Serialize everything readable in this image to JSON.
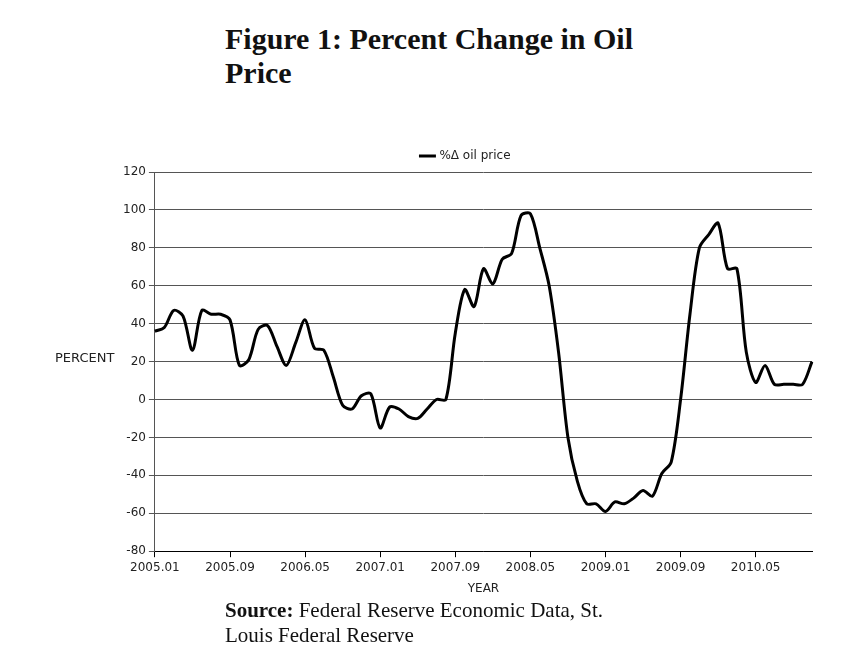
{
  "chart_data": {
    "type": "line",
    "title": "Figure 1: Percent Change in Oil Price",
    "source": "Source: Federal Reserve Economic Data, St. Louis Federal Reserve",
    "x_label": "YEAR",
    "y_label": "PERCENT",
    "categories": [
      "2005.01",
      null,
      null,
      null,
      null,
      null,
      null,
      null,
      "2005.09",
      null,
      null,
      null,
      null,
      null,
      null,
      null,
      "2006.05",
      null,
      null,
      null,
      null,
      null,
      null,
      null,
      "2007.01",
      null,
      null,
      null,
      null,
      null,
      null,
      null,
      "2007.09",
      null,
      null,
      null,
      null,
      null,
      null,
      null,
      "2008.05",
      null,
      null,
      null,
      null,
      null,
      null,
      null,
      "2009.01",
      null,
      null,
      null,
      null,
      null,
      null,
      null,
      "2009.09",
      null,
      null,
      null,
      null,
      null,
      null,
      null,
      "2010.05",
      null,
      null,
      null,
      null,
      null,
      null
    ],
    "series": [
      {
        "name": "%Δ oil price",
        "color": "#000000",
        "values": [
          36,
          38,
          47,
          44,
          26,
          47,
          45,
          45,
          42,
          18,
          21,
          37,
          39,
          28,
          18,
          30,
          42,
          27,
          26,
          12,
          -3,
          -5,
          2,
          3,
          -15,
          -4,
          -5,
          -9,
          -10,
          -5,
          0,
          0,
          35,
          58,
          49,
          69,
          61,
          74,
          77,
          97,
          98,
          80,
          60,
          25,
          -20,
          -43,
          -55,
          -55,
          -59,
          -54,
          -55,
          -52,
          -48,
          -51,
          -39,
          -33,
          0,
          45,
          80,
          87,
          93,
          69,
          69,
          25,
          9,
          18,
          8,
          8,
          8,
          8,
          20
        ]
      }
    ],
    "ylim": [
      -80,
      120
    ],
    "yticks": [
      -80,
      -60,
      -40,
      -20,
      0,
      20,
      40,
      60,
      80,
      100,
      120
    ],
    "grid": true,
    "legend": "top"
  }
}
